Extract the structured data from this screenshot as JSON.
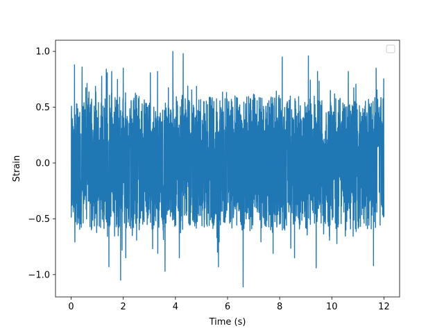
{
  "chart_data": {
    "type": "line",
    "xlabel": "Time (s)",
    "ylabel": "Strain",
    "xlim": [
      -0.6,
      12.6
    ],
    "ylim": [
      -1.2,
      1.1
    ],
    "xticks": [
      0,
      2,
      4,
      6,
      8,
      10,
      12
    ],
    "xtick_labels": [
      "0",
      "2",
      "4",
      "6",
      "8",
      "10",
      "12"
    ],
    "yticks": [
      -1.0,
      -0.5,
      0.0,
      0.5,
      1.0
    ],
    "ytick_labels": [
      "−1.0",
      "−0.5",
      "0.0",
      "0.5",
      "1.0"
    ],
    "grid": false,
    "legend": {
      "placement": "top-right",
      "entries": []
    },
    "series": [
      {
        "color": "#1f77b4",
        "x_start": 0.0,
        "x_end": 12.0,
        "amplitude_range": [
          -1.1,
          1.0
        ],
        "peaks": [
          {
            "x": 0.13,
            "y": 0.88
          },
          {
            "x": 0.42,
            "y": 0.86
          },
          {
            "x": 1.35,
            "y": 0.84
          },
          {
            "x": 2.0,
            "y": 0.85
          },
          {
            "x": 3.9,
            "y": 1.0
          },
          {
            "x": 4.3,
            "y": 0.98
          },
          {
            "x": 8.1,
            "y": 0.95
          },
          {
            "x": 9.1,
            "y": 0.96
          },
          {
            "x": 11.7,
            "y": 0.85
          },
          {
            "x": 1.45,
            "y": -0.93
          },
          {
            "x": 1.9,
            "y": -1.05
          },
          {
            "x": 3.6,
            "y": -0.97
          },
          {
            "x": 5.65,
            "y": -0.93
          },
          {
            "x": 6.6,
            "y": -1.11
          },
          {
            "x": 9.4,
            "y": -0.94
          },
          {
            "x": 11.6,
            "y": -0.92
          }
        ]
      }
    ]
  }
}
